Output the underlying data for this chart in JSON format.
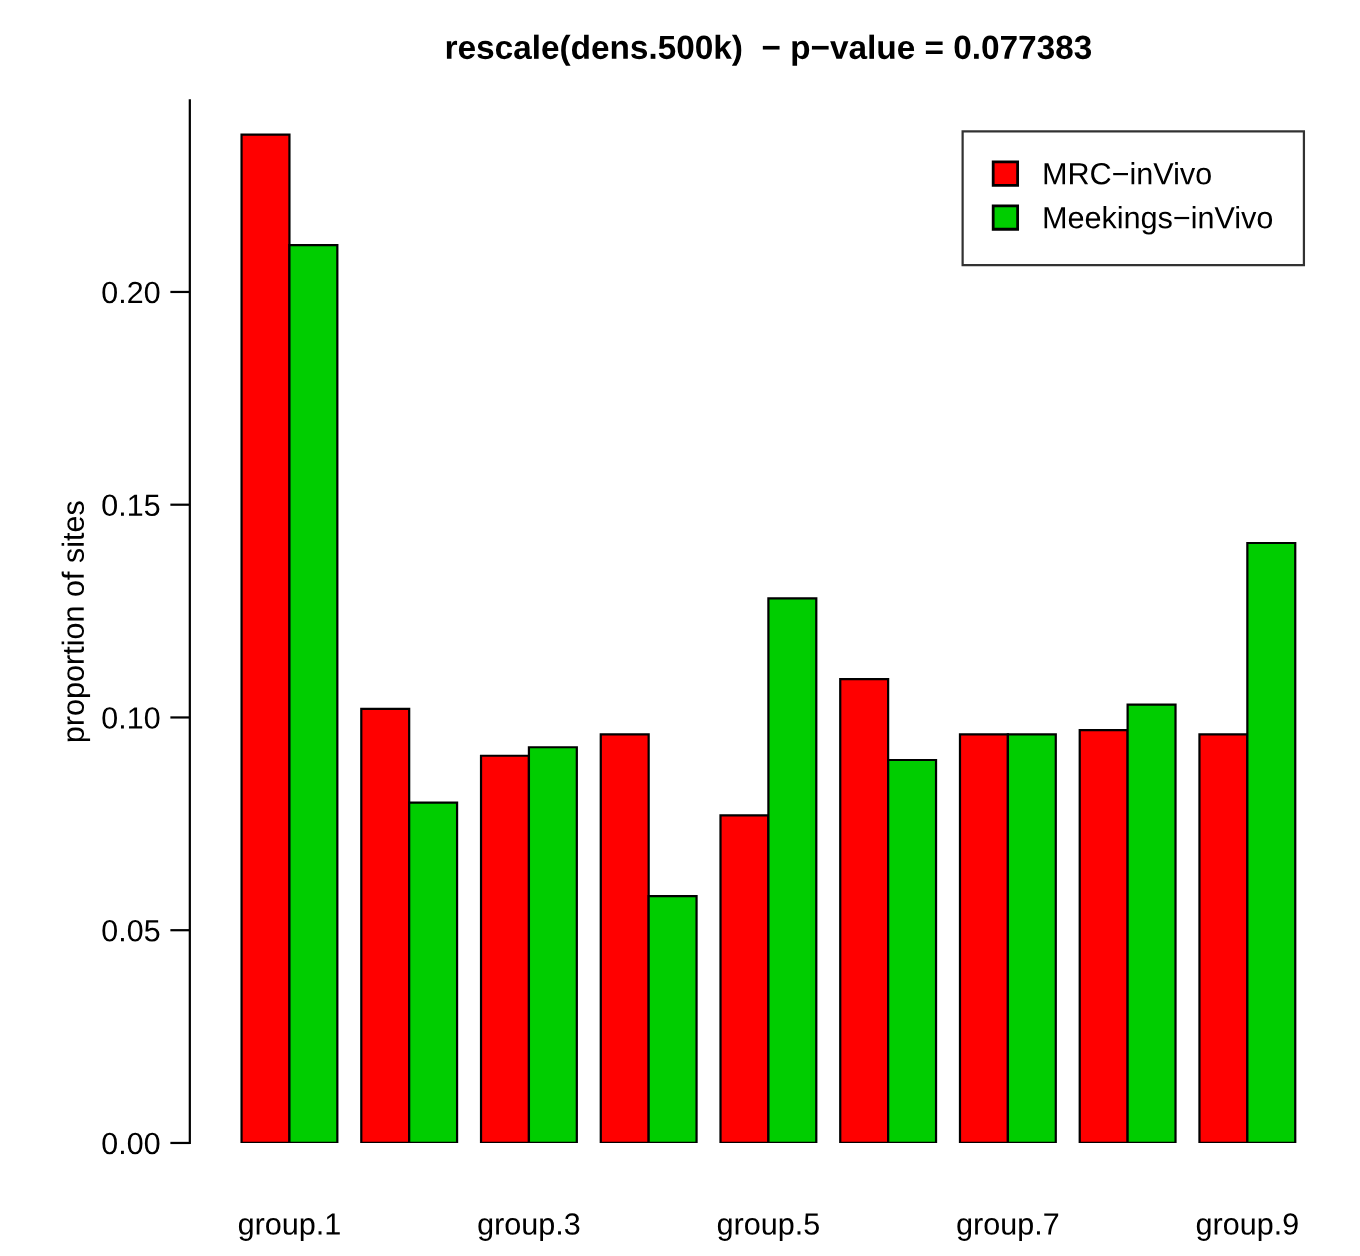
{
  "chart_data": {
    "type": "bar",
    "title": "rescale(dens.500k)  − p−value = 0.077383",
    "ylabel": "proportion of sites",
    "categories": [
      "group.1",
      null,
      "group.3",
      null,
      "group.5",
      null,
      "group.7",
      null,
      "group.9"
    ],
    "series": [
      {
        "name": "MRC−inVivo",
        "color": "#ff0000",
        "values": [
          0.237,
          0.102,
          0.091,
          0.096,
          0.077,
          0.109,
          0.096,
          0.097,
          0.096
        ]
      },
      {
        "name": "Meekings−inVivo",
        "color": "#00cd00",
        "values": [
          0.211,
          0.08,
          0.093,
          0.058,
          0.128,
          0.09,
          0.096,
          0.103,
          0.141
        ]
      }
    ],
    "ylim": [
      0,
      0.245
    ],
    "yticks": [
      {
        "value": 0,
        "label": "0.00"
      },
      {
        "value": 0.05,
        "label": "0.05"
      },
      {
        "value": 0.1,
        "label": "0.10"
      },
      {
        "value": 0.15,
        "label": "0.15"
      },
      {
        "value": 0.2,
        "label": "0.20"
      }
    ],
    "legend": "top right",
    "grid": false
  }
}
